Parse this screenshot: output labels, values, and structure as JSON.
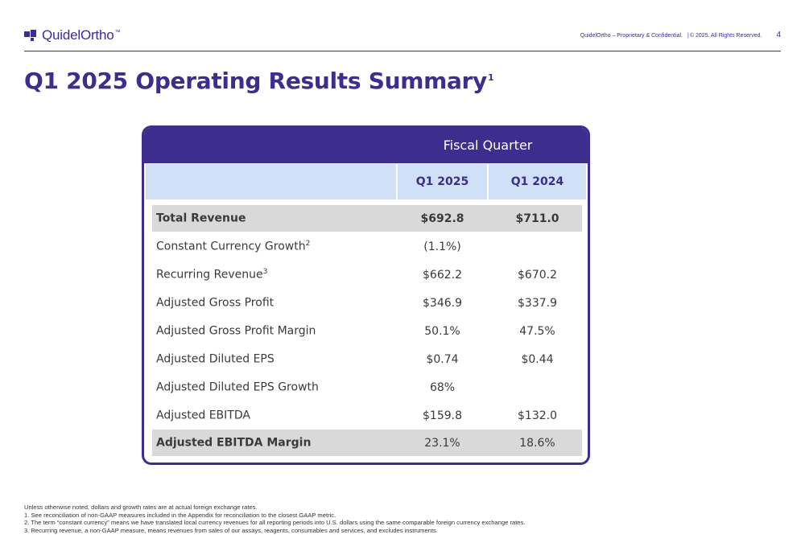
{
  "header": {
    "logo_text": "QuidelOrtho",
    "logo_tm": "™",
    "confidential": "QuidelOrtho – Proprietary & Confidential.",
    "copyright": "© 2025. All Rights Reserved.",
    "page_number": "4"
  },
  "title": {
    "text": "Q1 2025 Operating Results Summary",
    "superscript": "1"
  },
  "table": {
    "group_header": "Fiscal Quarter",
    "columns": [
      "Q1 2025",
      "Q1 2024"
    ],
    "rows": [
      {
        "label": "Total Revenue",
        "sup": "",
        "q1_2025": "$692.8",
        "q1_2024": "$711.0"
      },
      {
        "label": "Constant Currency Growth",
        "sup": "2",
        "q1_2025": "(1.1%)",
        "q1_2024": ""
      },
      {
        "label": "Recurring Revenue",
        "sup": "3",
        "q1_2025": "$662.2",
        "q1_2024": "$670.2"
      },
      {
        "label": "Adjusted Gross Profit",
        "sup": "",
        "q1_2025": "$346.9",
        "q1_2024": "$337.9"
      },
      {
        "label": "Adjusted Gross Profit Margin",
        "sup": "",
        "q1_2025": "50.1%",
        "q1_2024": "47.5%"
      },
      {
        "label": "Adjusted Diluted EPS",
        "sup": "",
        "q1_2025": "$0.74",
        "q1_2024": "$0.44"
      },
      {
        "label": "Adjusted Diluted EPS Growth",
        "sup": "",
        "q1_2025": "68%",
        "q1_2024": ""
      },
      {
        "label": "Adjusted EBITDA",
        "sup": "",
        "q1_2025": "$159.8",
        "q1_2024": "$132.0"
      },
      {
        "label": "Adjusted EBITDA Margin",
        "sup": "",
        "q1_2025": "23.1%",
        "q1_2024": "18.6%"
      }
    ]
  },
  "footnotes": [
    "Unless otherwise noted, dollars and growth rates are at actual foreign exchange rates.",
    "1. See reconciliation of non-GAAP measures included in the Appendix for reconciliation to the closest GAAP metric.",
    "2. The term “constant currency” means we have translated local currency revenues for all reporting periods into U.S. dollars using the same comparable foreign currency exchange rates.",
    "3. Recurring revenue, a non-GAAP measure, means revenues from sales of our assays, reagents, consumables and services, and excludes instruments."
  ],
  "colors": {
    "brand_purple": "#3d2d8c",
    "header_light_blue": "#cfe0f7",
    "row_shade": "#d9d9d9"
  }
}
